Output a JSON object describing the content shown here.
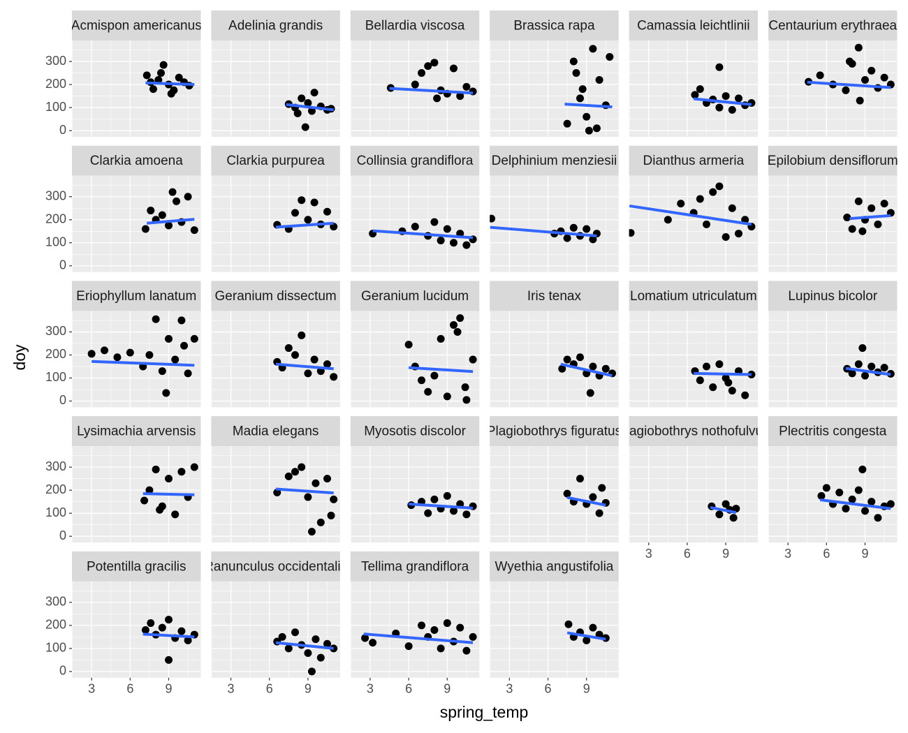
{
  "chart_data": {
    "type": "scatter",
    "x_label": "spring_temp",
    "y_label": "doy",
    "xlim": [
      1.47,
      11.5
    ],
    "ylim": [
      -27,
      391
    ],
    "xticks": [
      3,
      6,
      9
    ],
    "yticks": [
      0,
      100,
      200,
      300
    ],
    "grid": true,
    "point_color": "#000000",
    "fit_color": "#3366ff",
    "panels": [
      {
        "name": "Acmispon americanus",
        "x": [
          7.3,
          7.8,
          8.2,
          8.6,
          9,
          9.4,
          9.8,
          10.2,
          10.6,
          8.4,
          9.2,
          7.6
        ],
        "y": [
          240,
          180,
          220,
          285,
          200,
          175,
          230,
          210,
          195,
          250,
          160,
          210
        ],
        "fit_x": [
          7.2,
          11
        ],
        "fit_y": [
          207,
          200
        ]
      },
      {
        "name": "Adelinia grandis",
        "x": [
          7.5,
          8,
          8.5,
          9,
          9.5,
          10,
          10.5,
          8.8,
          9.3,
          8.2,
          10.8
        ],
        "y": [
          115,
          100,
          140,
          120,
          165,
          105,
          90,
          15,
          85,
          75,
          95
        ],
        "fit_x": [
          7.3,
          11
        ],
        "fit_y": [
          113,
          90
        ]
      },
      {
        "name": "Bellardia viscosa",
        "x": [
          4.6,
          6.5,
          7,
          7.5,
          8,
          8.5,
          9,
          9.5,
          10,
          10.5,
          11,
          8.2
        ],
        "y": [
          185,
          200,
          250,
          280,
          295,
          175,
          160,
          270,
          150,
          190,
          170,
          140
        ],
        "fit_x": [
          4.5,
          11
        ],
        "fit_y": [
          183,
          163
        ]
      },
      {
        "name": "Brassica rapa",
        "x": [
          7.5,
          8,
          8.2,
          8.5,
          9,
          9.2,
          9.5,
          10,
          10.5,
          10.8,
          8.7,
          9.8
        ],
        "y": [
          30,
          300,
          250,
          140,
          60,
          0,
          355,
          220,
          110,
          320,
          180,
          10
        ],
        "fit_x": [
          7.3,
          11
        ],
        "fit_y": [
          115,
          103
        ]
      },
      {
        "name": "Camassia leichtlinii",
        "x": [
          6.6,
          7,
          7.5,
          8,
          8.5,
          9,
          9.5,
          10,
          10.5,
          11,
          8.5
        ],
        "y": [
          155,
          180,
          120,
          135,
          100,
          150,
          90,
          140,
          110,
          120,
          275
        ],
        "fit_x": [
          6.5,
          11
        ],
        "fit_y": [
          138,
          113
        ]
      },
      {
        "name": "Centaurium erythraea",
        "x": [
          4.6,
          5.5,
          6.5,
          7.5,
          8,
          8.5,
          9,
          9.5,
          10,
          10.5,
          11,
          8.6,
          7.8
        ],
        "y": [
          212,
          240,
          200,
          175,
          290,
          360,
          220,
          260,
          185,
          230,
          200,
          130,
          300
        ],
        "fit_x": [
          4.5,
          11
        ],
        "fit_y": [
          210,
          187
        ]
      },
      {
        "name": "Clarkia amoena",
        "x": [
          7.2,
          7.6,
          8,
          8.5,
          9,
          9.3,
          9.6,
          10,
          10.5,
          11
        ],
        "y": [
          160,
          240,
          200,
          220,
          175,
          320,
          280,
          190,
          300,
          155
        ],
        "fit_x": [
          7.3,
          11
        ],
        "fit_y": [
          185,
          202
        ]
      },
      {
        "name": "Clarkia purpurea",
        "x": [
          6.6,
          7.5,
          8,
          8.5,
          9,
          9.5,
          10,
          10.5,
          11
        ],
        "y": [
          178,
          160,
          230,
          285,
          200,
          275,
          180,
          235,
          170
        ],
        "fit_x": [
          6.5,
          11
        ],
        "fit_y": [
          168,
          185
        ]
      },
      {
        "name": "Collinsia grandiflora",
        "x": [
          3.2,
          5.5,
          6.5,
          7.5,
          8,
          8.5,
          9,
          9.5,
          10,
          10.5,
          11
        ],
        "y": [
          140,
          150,
          170,
          130,
          190,
          110,
          160,
          100,
          140,
          90,
          115
        ],
        "fit_x": [
          3.2,
          11
        ],
        "fit_y": [
          152,
          122
        ]
      },
      {
        "name": "Delphinium menziesii",
        "x": [
          1.6,
          6.5,
          7,
          7.5,
          8,
          8.5,
          9,
          9.5,
          9.8
        ],
        "y": [
          205,
          140,
          150,
          120,
          165,
          130,
          160,
          115,
          140
        ],
        "fit_x": [
          1.5,
          9.8
        ],
        "fit_y": [
          167,
          130
        ]
      },
      {
        "name": "Dianthus armeria",
        "x": [
          1.6,
          4.5,
          5.5,
          6.5,
          7,
          7.5,
          8,
          8.5,
          9,
          9.5,
          10,
          10.5,
          11
        ],
        "y": [
          143,
          200,
          270,
          230,
          290,
          180,
          320,
          345,
          125,
          250,
          140,
          200,
          170
        ],
        "fit_x": [
          1.5,
          11
        ],
        "fit_y": [
          260,
          180
        ]
      },
      {
        "name": "Epilobium densiflorum",
        "x": [
          7.6,
          8,
          8.5,
          9,
          9.5,
          10,
          10.5,
          11,
          8.8
        ],
        "y": [
          210,
          160,
          280,
          200,
          250,
          180,
          270,
          230,
          150
        ],
        "fit_x": [
          7.8,
          11
        ],
        "fit_y": [
          205,
          218
        ]
      },
      {
        "name": "Eriophyllum lanatum",
        "x": [
          3,
          4,
          5,
          6,
          7,
          7.5,
          8,
          8.5,
          9,
          9.5,
          10,
          10.5,
          11,
          8.8,
          10.2
        ],
        "y": [
          205,
          220,
          190,
          210,
          150,
          200,
          355,
          130,
          270,
          180,
          350,
          120,
          270,
          35,
          240
        ],
        "fit_x": [
          3,
          11
        ],
        "fit_y": [
          172,
          155
        ]
      },
      {
        "name": "Geranium dissectum",
        "x": [
          6.6,
          7,
          7.5,
          8,
          8.5,
          9,
          9.5,
          10,
          10.5,
          11
        ],
        "y": [
          170,
          145,
          230,
          200,
          285,
          120,
          180,
          130,
          160,
          105
        ],
        "fit_x": [
          6.5,
          11
        ],
        "fit_y": [
          160,
          140
        ]
      },
      {
        "name": "Geranium lucidum",
        "x": [
          6,
          6.5,
          7,
          7.5,
          8,
          8.5,
          9,
          9.5,
          10,
          10.5,
          11,
          9.8,
          10.4
        ],
        "y": [
          245,
          150,
          90,
          40,
          110,
          270,
          20,
          330,
          360,
          5,
          180,
          300,
          60
        ],
        "fit_x": [
          6,
          11
        ],
        "fit_y": [
          145,
          128
        ]
      },
      {
        "name": "Iris tenax",
        "x": [
          7.1,
          7.5,
          8,
          8.5,
          9,
          9.5,
          10,
          10.5,
          11,
          9.3
        ],
        "y": [
          140,
          180,
          160,
          190,
          120,
          150,
          110,
          140,
          120,
          35
        ],
        "fit_x": [
          7,
          11
        ],
        "fit_y": [
          160,
          110
        ]
      },
      {
        "name": "Lomatium utriculatum",
        "x": [
          6.6,
          7,
          7.5,
          8,
          8.5,
          9,
          9.5,
          10,
          10.5,
          11,
          9.2
        ],
        "y": [
          130,
          90,
          150,
          60,
          160,
          100,
          45,
          130,
          25,
          115,
          80
        ],
        "fit_x": [
          6.5,
          11
        ],
        "fit_y": [
          120,
          115
        ]
      },
      {
        "name": "Lupinus bicolor",
        "x": [
          7.6,
          8,
          8.5,
          8.8,
          9,
          9.5,
          10,
          10.5,
          11
        ],
        "y": [
          140,
          120,
          160,
          230,
          110,
          150,
          125,
          145,
          118
        ],
        "fit_x": [
          7.5,
          11
        ],
        "fit_y": [
          142,
          115
        ]
      },
      {
        "name": "Lysimachia arvensis",
        "x": [
          7.1,
          7.5,
          8,
          8.5,
          9,
          9.5,
          10,
          10.5,
          11,
          8.3
        ],
        "y": [
          155,
          200,
          290,
          130,
          250,
          95,
          280,
          170,
          300,
          115
        ],
        "fit_x": [
          7,
          11
        ],
        "fit_y": [
          185,
          180
        ]
      },
      {
        "name": "Madia elegans",
        "x": [
          6.6,
          7.5,
          8,
          8.5,
          9,
          9.3,
          9.6,
          10,
          10.5,
          10.8,
          11
        ],
        "y": [
          190,
          260,
          280,
          300,
          170,
          20,
          230,
          60,
          250,
          90,
          160
        ],
        "fit_x": [
          6.5,
          11
        ],
        "fit_y": [
          205,
          188
        ]
      },
      {
        "name": "Myosotis discolor",
        "x": [
          6.2,
          7,
          7.5,
          8,
          8.5,
          9,
          9.5,
          10,
          10.5,
          11
        ],
        "y": [
          135,
          150,
          100,
          160,
          120,
          175,
          110,
          140,
          95,
          130
        ],
        "fit_x": [
          6,
          11
        ],
        "fit_y": [
          140,
          122
        ]
      },
      {
        "name": "Plagiobothrys figuratus",
        "x": [
          7.5,
          8,
          8.5,
          9,
          9.5,
          10,
          10.2,
          10.5
        ],
        "y": [
          185,
          150,
          250,
          140,
          170,
          100,
          210,
          145
        ],
        "fit_x": [
          7.5,
          10.5
        ],
        "fit_y": [
          168,
          135
        ]
      },
      {
        "name": "Plagiobothrys nothofulvus",
        "x": [
          7.9,
          8.5,
          9,
          9.3,
          9.6,
          9.8
        ],
        "y": [
          130,
          95,
          140,
          115,
          80,
          120
        ],
        "fit_x": [
          7.8,
          9.8
        ],
        "fit_y": [
          125,
          103
        ]
      },
      {
        "name": "Plectritis congesta",
        "x": [
          5.6,
          6,
          6.5,
          7,
          7.5,
          8,
          8.5,
          9,
          9.5,
          10,
          10.5,
          11,
          8.8
        ],
        "y": [
          175,
          210,
          140,
          190,
          120,
          160,
          200,
          110,
          150,
          80,
          130,
          140,
          290
        ],
        "fit_x": [
          5.5,
          11
        ],
        "fit_y": [
          158,
          120
        ]
      },
      {
        "name": "Potentilla gracilis",
        "x": [
          7.2,
          7.6,
          8,
          8.5,
          9,
          9.5,
          10,
          10.5,
          11,
          9
        ],
        "y": [
          180,
          210,
          160,
          190,
          225,
          145,
          175,
          135,
          160,
          50
        ],
        "fit_x": [
          7,
          11
        ],
        "fit_y": [
          162,
          150
        ]
      },
      {
        "name": "Ranunculus occidentalis",
        "x": [
          6.6,
          7,
          7.5,
          8,
          8.5,
          9,
          9.3,
          9.6,
          10,
          10.5,
          11
        ],
        "y": [
          130,
          150,
          100,
          170,
          115,
          80,
          0,
          140,
          60,
          120,
          100
        ],
        "fit_x": [
          6.5,
          11
        ],
        "fit_y": [
          125,
          100
        ]
      },
      {
        "name": "Tellima grandiflora",
        "x": [
          2.6,
          3.2,
          5,
          6,
          7,
          7.5,
          8,
          8.5,
          9,
          9.5,
          10,
          10.5,
          11
        ],
        "y": [
          145,
          125,
          165,
          110,
          200,
          150,
          180,
          100,
          210,
          130,
          190,
          90,
          150
        ],
        "fit_x": [
          2.5,
          11
        ],
        "fit_y": [
          163,
          125
        ]
      },
      {
        "name": "Wyethia angustifolia",
        "x": [
          7.6,
          8,
          8.5,
          9,
          9.5,
          10,
          10.5
        ],
        "y": [
          205,
          150,
          170,
          135,
          190,
          160,
          145
        ],
        "fit_x": [
          7.5,
          10.5
        ],
        "fit_y": [
          168,
          140
        ]
      }
    ]
  }
}
